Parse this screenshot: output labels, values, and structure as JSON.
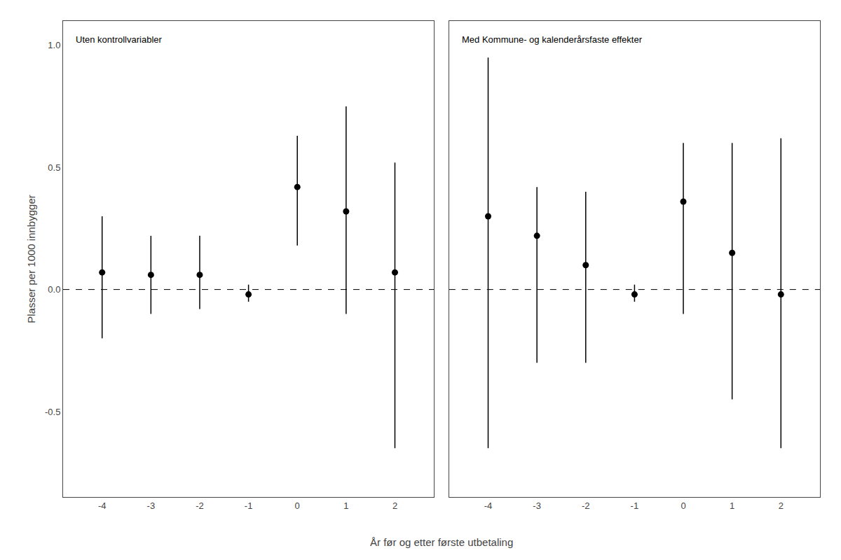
{
  "chart_data": [
    {
      "type": "scatter",
      "title": "Uten kontrollvariabler",
      "xlabel": "År før og etter første utbetaling",
      "ylabel": "Plasser per 1000 innbygger",
      "x": [
        -4,
        -3,
        -2,
        -1,
        0,
        1,
        2
      ],
      "values": [
        0.07,
        0.06,
        0.06,
        -0.02,
        0.42,
        0.32,
        0.07
      ],
      "ci_low": [
        -0.2,
        -0.1,
        -0.08,
        -0.05,
        0.18,
        -0.1,
        -0.65
      ],
      "ci_high": [
        0.3,
        0.22,
        0.22,
        0.02,
        0.63,
        0.75,
        0.52
      ],
      "color": "#000000",
      "reference_lines": [
        {
          "y": 0,
          "line_style": "dashed",
          "color": "#000000"
        }
      ],
      "xlim": [
        -4.8,
        2.8
      ],
      "xticks": [
        -4,
        -3,
        -2,
        -1,
        0,
        1,
        2
      ],
      "ylim": [
        -0.85,
        1.1
      ],
      "yticks": [
        -0.5,
        {
          "value": 0.0,
          "label": "0.0"
        },
        0.5,
        {
          "value": 1.0,
          "label": "1.0"
        }
      ],
      "grid": false
    },
    {
      "type": "scatter",
      "title": "Med Kommune- og kalenderårsfaste effekter",
      "x": [
        -4,
        -3,
        -2,
        -1,
        0,
        1,
        2
      ],
      "values": [
        0.3,
        0.22,
        0.1,
        -0.02,
        0.36,
        0.15,
        -0.02
      ],
      "ci_low": [
        -0.65,
        -0.3,
        -0.3,
        -0.05,
        -0.1,
        -0.45,
        -0.65
      ],
      "ci_high": [
        0.95,
        0.42,
        0.4,
        0.02,
        0.6,
        0.6,
        0.62
      ],
      "color": "#000000",
      "reference_lines": [
        {
          "y": 0,
          "line_style": "dashed",
          "color": "#000000"
        }
      ],
      "xlim": [
        -4.8,
        2.8
      ],
      "xticks": [
        -4,
        -3,
        -2,
        -1,
        0,
        1,
        2
      ],
      "ylim": [
        -0.85,
        1.1
      ],
      "yticks": [
        -0.5,
        {
          "value": 0.0,
          "label": "0.0"
        },
        0.5,
        {
          "value": 1.0,
          "label": "1.0"
        }
      ],
      "tick_labels": "x",
      "grid": false
    }
  ]
}
